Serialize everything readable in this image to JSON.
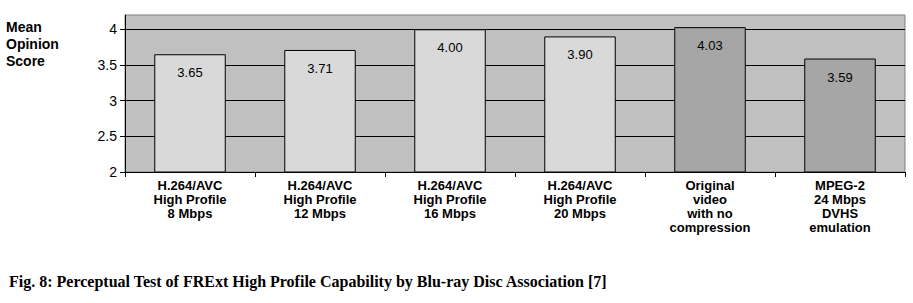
{
  "chart_data": {
    "type": "bar",
    "title": "Fig. 8: Perceptual Test of FRExt High Profile Capability by Blu-ray Disc Association [7]",
    "y_label": "Mean\nOpinion\nScore",
    "categories": [
      "H.264/AVC\nHigh Profile\n8 Mbps",
      "H.264/AVC\nHigh Profile\n12 Mbps",
      "H.264/AVC\nHigh Profile\n16 Mbps",
      "H.264/AVC\nHigh Profile\n20 Mbps",
      "Original\nvideo\nwith no\ncompression",
      "MPEG-2\n24 Mbps\nDVHS\nemulation"
    ],
    "values": [
      3.65,
      3.71,
      4.0,
      3.9,
      4.03,
      3.59
    ],
    "value_labels": [
      "3.65",
      "3.71",
      "4.00",
      "3.90",
      "4.03",
      "3.59"
    ],
    "colors": [
      "#d9d9d9",
      "#d9d9d9",
      "#d9d9d9",
      "#d9d9d9",
      "#a6a6a6",
      "#a6a6a6"
    ],
    "ylim": [
      2,
      4.2
    ],
    "yticks": [
      2,
      2.5,
      3,
      3.5,
      4
    ],
    "grid": true,
    "data_labels": true
  }
}
